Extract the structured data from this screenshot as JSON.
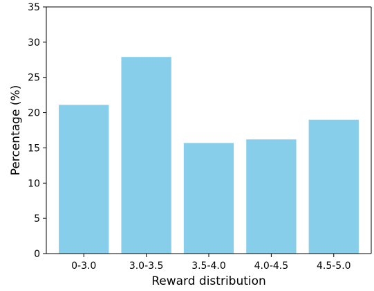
{
  "chart_data": {
    "type": "bar",
    "categories": [
      "0-3.0",
      "3.0-3.5",
      "3.5-4.0",
      "4.0-4.5",
      "4.5-5.0"
    ],
    "values": [
      21.1,
      27.9,
      15.7,
      16.2,
      19.0
    ],
    "xlabel": "Reward distribution",
    "ylabel": "Percentage (%)",
    "ylim": [
      0,
      35
    ],
    "yticks": [
      0,
      5,
      10,
      15,
      20,
      25,
      30,
      35
    ],
    "grid": false,
    "bar_color": "#87ceeb"
  }
}
